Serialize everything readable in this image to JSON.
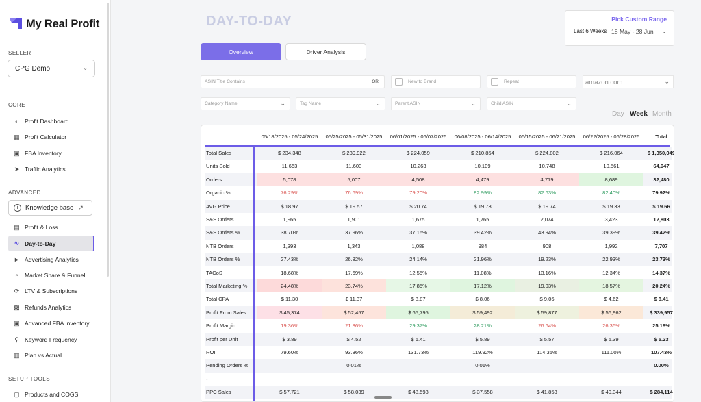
{
  "app": {
    "name": "My Real Profit"
  },
  "sidebar": {
    "seller_label": "SELLER",
    "seller_value": "CPG Demo",
    "core_label": "CORE",
    "core_items": [
      "Profit Dashboard",
      "Profit Calculator",
      "FBA Inventory",
      "Traffic Analytics"
    ],
    "advanced_label": "ADVANCED",
    "knowledge_base": "Knowledge base",
    "advanced_items": [
      "Profit & Loss",
      "Day-to-Day",
      "Advertising Analytics",
      "Market Share & Funnel",
      "LTV & Subscriptions",
      "Refunds Analytics",
      "Advanced FBA Inventory",
      "Keyword Frequency",
      "Plan vs Actual"
    ],
    "setup_label": "SETUP TOOLS",
    "setup_items": [
      "Products and COGS"
    ]
  },
  "header": {
    "title": "DAY-TO-DAY",
    "custom_range_label": "Pick Custom Range",
    "range_preset": "Last 6 Weeks",
    "range_dates": "18 May - 28 Jun"
  },
  "tabs": [
    "Overview",
    "Driver Analysis"
  ],
  "filters": {
    "asin_title_placeholder": "ASIN Title Contains",
    "or_label": "OR",
    "new_to_brand": "New to Brand",
    "repeat": "Repeat",
    "marketplace": "amazon.com",
    "category": "Category Name",
    "tag": "Tag Name",
    "parent_asin": "Parent ASIN",
    "child_asin": "Child ASIN"
  },
  "period_toggle": [
    "Day",
    "Week",
    "Month"
  ],
  "table": {
    "columns": [
      "05/18/2025 - 05/24/2025",
      "05/25/2025 - 05/31/2025",
      "06/01/2025 - 06/07/2025",
      "06/08/2025 - 06/14/2025",
      "06/15/2025 - 06/21/2025",
      "06/22/2025 - 06/28/2025",
      "Total"
    ],
    "rows": [
      {
        "label": "Total Sales",
        "values": [
          "$ 234,348",
          "$ 239,922",
          "$ 224,059",
          "$ 210,854",
          "$ 224,802",
          "$ 216,064",
          "$ 1,350,049"
        ]
      },
      {
        "label": "Units Sold",
        "values": [
          "11,663",
          "11,603",
          "10,263",
          "10,109",
          "10,748",
          "10,561",
          "64,947"
        ]
      },
      {
        "label": "Orders",
        "values": [
          "5,078",
          "5,007",
          "4,508",
          "4,479",
          "4,719",
          "8,689",
          "32,480"
        ],
        "bg": [
          "#fde0e0",
          "#fde0e0",
          "#fde0e0",
          "#fde0e0",
          "#fde0e0",
          "#dff5df",
          ""
        ]
      },
      {
        "label": "Organic %",
        "values": [
          "76.29%",
          "76.69%",
          "79.20%",
          "82.99%",
          "82.63%",
          "82.40%",
          "79.92%"
        ],
        "tc": [
          "red",
          "red",
          "red",
          "green",
          "green",
          "green",
          ""
        ]
      },
      {
        "label": "AVG Price",
        "values": [
          "$ 18.97",
          "$ 19.57",
          "$ 20.74",
          "$ 19.73",
          "$ 19.74",
          "$ 19.33",
          "$ 19.66"
        ]
      },
      {
        "label": "S&S Orders",
        "values": [
          "1,965",
          "1,901",
          "1,675",
          "1,765",
          "2,074",
          "3,423",
          "12,803"
        ]
      },
      {
        "label": "S&S Orders %",
        "values": [
          "38.70%",
          "37.96%",
          "37.16%",
          "39.42%",
          "43.94%",
          "39.39%",
          "39.42%"
        ]
      },
      {
        "label": "NTB Orders",
        "values": [
          "1,393",
          "1,343",
          "1,088",
          "984",
          "908",
          "1,992",
          "7,707"
        ]
      },
      {
        "label": "NTB Orders %",
        "values": [
          "27.43%",
          "26.82%",
          "24.14%",
          "21.96%",
          "19.23%",
          "22.93%",
          "23.73%"
        ]
      },
      {
        "label": "TACoS",
        "values": [
          "18.68%",
          "17.69%",
          "12.55%",
          "11.08%",
          "13.16%",
          "12.34%",
          "14.37%"
        ]
      },
      {
        "label": "Total Marketing %",
        "values": [
          "24.48%",
          "23.74%",
          "17.85%",
          "17.12%",
          "19.03%",
          "18.57%",
          "20.24%"
        ],
        "bg": [
          "#fddada",
          "#fde2dc",
          "#e6f7e6",
          "#dff5df",
          "#e9f0e2",
          "#e4f5e0",
          ""
        ]
      },
      {
        "label": "Total CPA",
        "values": [
          "$ 11.30",
          "$ 11.37",
          "$ 8.87",
          "$ 8.06",
          "$ 9.06",
          "$ 4.62",
          "$ 8.41"
        ]
      },
      {
        "label": "Profit From Sales",
        "values": [
          "$ 45,374",
          "$ 52,457",
          "$ 65,795",
          "$ 59,492",
          "$ 59,877",
          "$ 56,962",
          "$ 339,957"
        ],
        "bg": [
          "#fde0e6",
          "#fde4dc",
          "#dff5df",
          "#f4ecd8",
          "#eef1de",
          "#fbe8d8",
          ""
        ]
      },
      {
        "label": "Profit Margin",
        "values": [
          "19.36%",
          "21.86%",
          "29.37%",
          "28.21%",
          "26.64%",
          "26.36%",
          "25.18%"
        ],
        "tc": [
          "red",
          "red",
          "green",
          "green",
          "red",
          "red",
          ""
        ]
      },
      {
        "label": "Profit per Unit",
        "values": [
          "$ 3.89",
          "$ 4.52",
          "$ 6.41",
          "$ 5.89",
          "$ 5.57",
          "$ 5.39",
          "$ 5.23"
        ]
      },
      {
        "label": "ROI",
        "values": [
          "79.60%",
          "93.36%",
          "131.73%",
          "119.92%",
          "114.35%",
          "111.00%",
          "107.43%"
        ]
      },
      {
        "label": "Pending Orders %",
        "values": [
          "",
          "0.01%",
          "",
          "0.01%",
          "",
          "",
          "0.00%"
        ]
      },
      {
        "label": "-",
        "values": [
          "",
          "",
          "",
          "",
          "",
          "",
          ""
        ]
      },
      {
        "label": "PPC Sales",
        "values": [
          "$ 57,721",
          "$ 58,039",
          "$ 48,598",
          "$ 37,558",
          "$ 41,853",
          "$ 40,344",
          "$ 284,114"
        ]
      }
    ]
  }
}
